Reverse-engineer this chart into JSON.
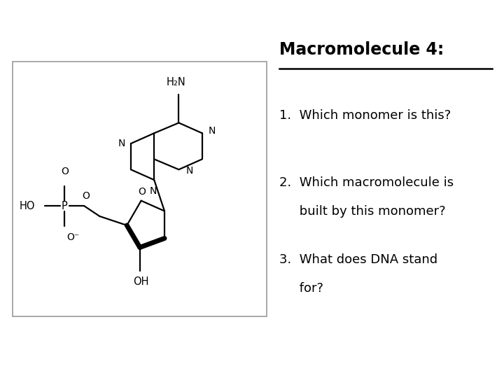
{
  "title": "Macromolecule 4:",
  "bg_color": "#ffffff",
  "text_color": "#000000",
  "title_fontsize": 17,
  "question_fontsize": 13,
  "q1": "1.  Which monomer is this?",
  "q2_l1": "2.  Which macromolecule is",
  "q2_l2": "     built by this monomer?",
  "q3_l1": "3.  What does DNA stand",
  "q3_l2": "     for?"
}
